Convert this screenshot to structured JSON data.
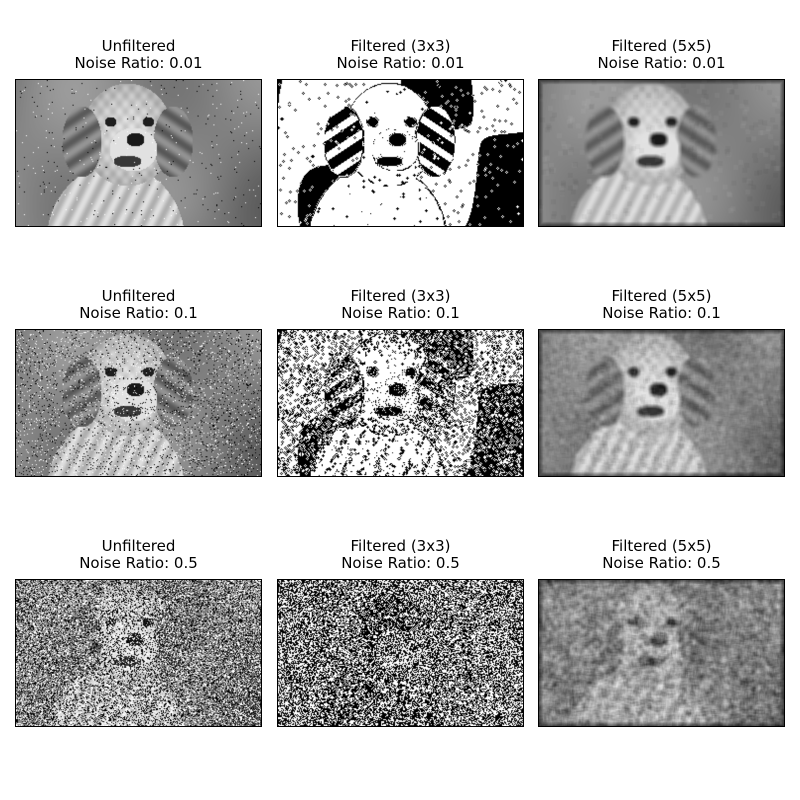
{
  "figure": {
    "panels": [
      {
        "title_line1": "Unfiltered",
        "title_line2": "Noise Ratio: 0.01",
        "variant": "unfiltered",
        "noise_ratio": 0.01
      },
      {
        "title_line1": "Filtered (3x3)",
        "title_line2": "Noise Ratio: 0.01",
        "variant": "filtered-3x3",
        "noise_ratio": 0.01
      },
      {
        "title_line1": "Filtered (5x5)",
        "title_line2": "Noise Ratio: 0.01",
        "variant": "filtered-5x5",
        "noise_ratio": 0.01
      },
      {
        "title_line1": "Unfiltered",
        "title_line2": "Noise Ratio: 0.1",
        "variant": "unfiltered",
        "noise_ratio": 0.1
      },
      {
        "title_line1": "Filtered (3x3)",
        "title_line2": "Noise Ratio: 0.1",
        "variant": "filtered-3x3",
        "noise_ratio": 0.1
      },
      {
        "title_line1": "Filtered (5x5)",
        "title_line2": "Noise Ratio: 0.1",
        "variant": "filtered-5x5",
        "noise_ratio": 0.1
      },
      {
        "title_line1": "Unfiltered",
        "title_line2": "Noise Ratio: 0.5",
        "variant": "unfiltered",
        "noise_ratio": 0.5
      },
      {
        "title_line1": "Filtered (3x3)",
        "title_line2": "Noise Ratio: 0.5",
        "variant": "filtered-3x3",
        "noise_ratio": 0.5
      },
      {
        "title_line1": "Filtered (5x5)",
        "title_line2": "Noise Ratio: 0.5",
        "variant": "filtered-5x5",
        "noise_ratio": 0.5
      }
    ]
  }
}
